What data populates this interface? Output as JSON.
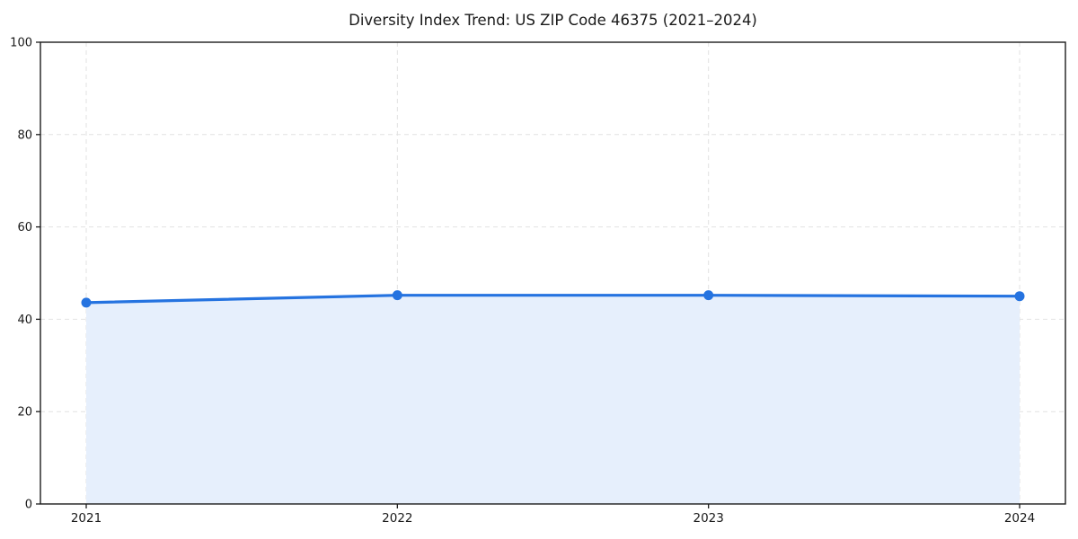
{
  "page": {
    "background": "#ffffff"
  },
  "chart_data": {
    "type": "area",
    "title": "Diversity Index Trend: US ZIP Code 46375 (2021–2024)",
    "series_name": "Diversity Index",
    "x": [
      2021,
      2022,
      2023,
      2024
    ],
    "values": [
      43.6,
      45.2,
      45.2,
      45.0
    ],
    "xlabel": "",
    "ylabel": "",
    "ylim": [
      0,
      100
    ],
    "yticks": [
      0,
      20,
      40,
      60,
      80,
      100
    ],
    "xtick_labels": [
      "2021",
      "2022",
      "2023",
      "2024"
    ],
    "grid": true,
    "grid_style": "dashed",
    "legend_position": "none",
    "colors": {
      "line": "#2573e0",
      "marker": "#2573e0",
      "area_fill": "#e6effc",
      "grid": "#e2e2e2",
      "axis": "#1c1c1c",
      "text": "#1a1a1a",
      "background": "#ffffff"
    }
  }
}
